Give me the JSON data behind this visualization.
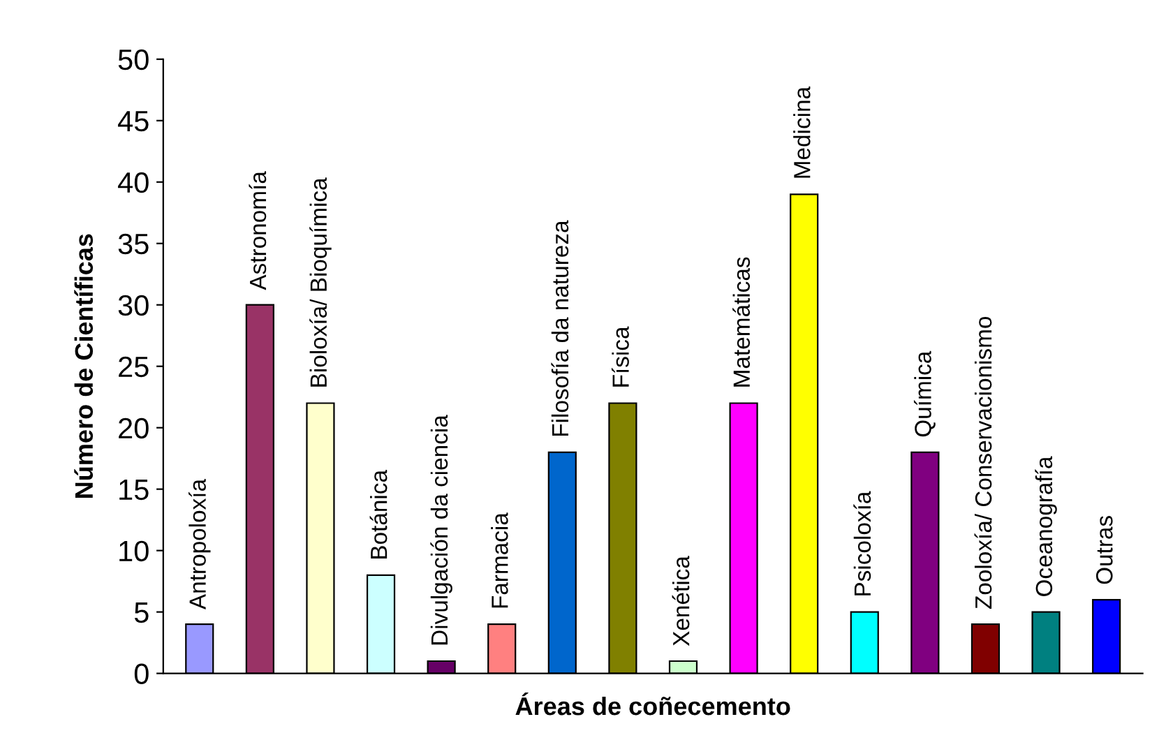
{
  "chart_data": {
    "type": "bar",
    "xlabel": "Áreas de coñecemento",
    "ylabel": "Número de Científicas",
    "categories": [
      "Antropoloxía",
      "Astronomía",
      "Bioloxía/ Bioquímica",
      "Botánica",
      "Divulgación da ciencia",
      "Farmacia",
      "Filosofía da natureza",
      "Física",
      "Xenética",
      "Matemáticas",
      "Medicina",
      "Psicoloxía",
      "Química",
      "Zooloxía/ Conservacionismo",
      "Oceanografía",
      "Outras"
    ],
    "values": [
      4,
      30,
      22,
      8,
      1,
      4,
      18,
      22,
      1,
      22,
      39,
      5,
      18,
      4,
      5,
      6
    ],
    "colors": [
      "#9999ff",
      "#993366",
      "#ffffcc",
      "#ccffff",
      "#660066",
      "#ff8080",
      "#0066cc",
      "#808000",
      "#ccffcc",
      "#ff00ff",
      "#ffff00",
      "#00ffff",
      "#800080",
      "#800000",
      "#008080",
      "#0000ff"
    ],
    "ylim": [
      0,
      50
    ],
    "yticks": [
      0,
      5,
      10,
      15,
      20,
      25,
      30,
      35,
      40,
      45,
      50
    ],
    "grid": false,
    "legend": false
  }
}
